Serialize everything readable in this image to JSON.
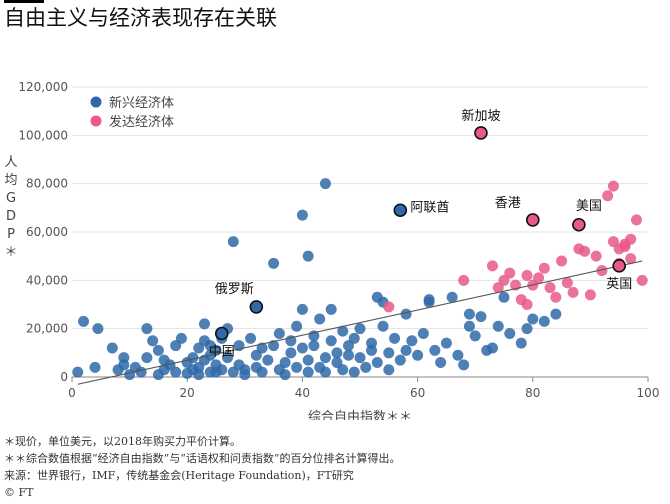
{
  "title": "自由主义与经济表现存在关联",
  "footnotes": [
    "＊现价，单位美元，以2018年购买力平价计算。",
    "＊＊综合数值根据“经济自由指数”与“话语权和问责指数”的百分位排名计算得出。",
    "来源：世界银行，IMF，传统基金会(Heritage Foundation)，FT研究"
  ],
  "credit": "© FT",
  "colors": {
    "emerging": "#2f6aa8",
    "developed": "#e7598c",
    "axis": "#888",
    "grid": "#e2e2e2"
  },
  "chart_data": {
    "type": "scatter",
    "xlabel": "综合自由指数＊＊",
    "ylabel": "人均GDP＊",
    "xlim": [
      0,
      100
    ],
    "ylim": [
      0,
      120000
    ],
    "x_ticks": [
      "0",
      "20",
      "40",
      "60",
      "80",
      "100"
    ],
    "y_ticks": [
      "0",
      "20,000",
      "40,000",
      "60,000",
      "80,000",
      "100,000",
      "120,000"
    ],
    "grid": "horizontal",
    "legend_position": "top-left",
    "series": [
      {
        "name": "新兴经济体",
        "points": [
          [
            1,
            2000
          ],
          [
            2,
            23000
          ],
          [
            4,
            4000
          ],
          [
            4.5,
            20000
          ],
          [
            7,
            12000
          ],
          [
            8,
            3000
          ],
          [
            9,
            5000
          ],
          [
            9,
            8000
          ],
          [
            10,
            1000
          ],
          [
            11,
            4000
          ],
          [
            12,
            2000
          ],
          [
            13,
            20000
          ],
          [
            13,
            8000
          ],
          [
            14,
            15000
          ],
          [
            15,
            1000
          ],
          [
            15,
            11000
          ],
          [
            16,
            3000
          ],
          [
            16,
            7000
          ],
          [
            17,
            5000
          ],
          [
            18,
            13000
          ],
          [
            18,
            2000
          ],
          [
            19,
            16000
          ],
          [
            20,
            6000
          ],
          [
            20,
            1500
          ],
          [
            21,
            8000
          ],
          [
            21,
            3000
          ],
          [
            22,
            12000
          ],
          [
            22,
            4000
          ],
          [
            22,
            1000
          ],
          [
            23,
            7000
          ],
          [
            23,
            15000
          ],
          [
            23,
            22000
          ],
          [
            24,
            2000
          ],
          [
            24,
            9000
          ],
          [
            24,
            13000
          ],
          [
            25,
            5000
          ],
          [
            25,
            2000
          ],
          [
            25,
            11000
          ],
          [
            26,
            3000
          ],
          [
            26,
            16000
          ],
          [
            27,
            20000
          ],
          [
            27,
            8000
          ],
          [
            28,
            56000
          ],
          [
            28,
            2000
          ],
          [
            29,
            13000
          ],
          [
            29,
            5000
          ],
          [
            30,
            3000
          ],
          [
            30,
            1000
          ],
          [
            31,
            16000
          ],
          [
            32,
            9000
          ],
          [
            32,
            4000
          ],
          [
            33,
            12000
          ],
          [
            33,
            2000
          ],
          [
            34,
            7000
          ],
          [
            35,
            47000
          ],
          [
            35,
            13000
          ],
          [
            36,
            3000
          ],
          [
            36,
            18000
          ],
          [
            37,
            6000
          ],
          [
            37,
            1000
          ],
          [
            38,
            15000
          ],
          [
            38,
            10000
          ],
          [
            39,
            4000
          ],
          [
            39,
            21000
          ],
          [
            40,
            67000
          ],
          [
            40,
            28000
          ],
          [
            40,
            12000
          ],
          [
            41,
            50000
          ],
          [
            41,
            7000
          ],
          [
            41,
            2000
          ],
          [
            42,
            17000
          ],
          [
            42,
            13000
          ],
          [
            43,
            24000
          ],
          [
            43,
            4000
          ],
          [
            44,
            80000
          ],
          [
            44,
            8000
          ],
          [
            44,
            2000
          ],
          [
            45,
            15000
          ],
          [
            45,
            28000
          ],
          [
            46,
            6000
          ],
          [
            46,
            10000
          ],
          [
            47,
            19000
          ],
          [
            47,
            3000
          ],
          [
            48,
            9000
          ],
          [
            48,
            13000
          ],
          [
            49,
            16000
          ],
          [
            49,
            2000
          ],
          [
            50,
            8000
          ],
          [
            50,
            20000
          ],
          [
            51,
            4000
          ],
          [
            52,
            11000
          ],
          [
            52,
            14000
          ],
          [
            53,
            33000
          ],
          [
            53,
            6000
          ],
          [
            54,
            21000
          ],
          [
            54,
            31000
          ],
          [
            55,
            10000
          ],
          [
            55,
            3000
          ],
          [
            56,
            16000
          ],
          [
            57,
            7000
          ],
          [
            58,
            11000
          ],
          [
            58,
            26000
          ],
          [
            59,
            15000
          ],
          [
            60,
            9000
          ],
          [
            61,
            18000
          ],
          [
            62,
            31000
          ],
          [
            62,
            32000
          ],
          [
            63,
            11000
          ],
          [
            64,
            6000
          ],
          [
            65,
            14000
          ],
          [
            66,
            33000
          ],
          [
            67,
            9000
          ],
          [
            68,
            5000
          ],
          [
            69,
            21000
          ],
          [
            69,
            26000
          ],
          [
            70,
            17000
          ],
          [
            71,
            25000
          ],
          [
            72,
            11000
          ],
          [
            73,
            12000
          ],
          [
            74,
            21000
          ],
          [
            75,
            33000
          ],
          [
            76,
            18000
          ],
          [
            78,
            14000
          ],
          [
            79,
            20000
          ],
          [
            80,
            24000
          ],
          [
            82,
            23000
          ],
          [
            84,
            26000
          ]
        ],
        "highlights": [
          {
            "label": "中国",
            "x": 26,
            "y": 18000
          },
          {
            "label": "俄罗斯",
            "x": 32,
            "y": 29000
          },
          {
            "label": "阿联酋",
            "x": 57,
            "y": 69000
          }
        ]
      },
      {
        "name": "发达经济体",
        "points": [
          [
            55,
            29000
          ],
          [
            68,
            40000
          ],
          [
            73,
            46000
          ],
          [
            74,
            37000
          ],
          [
            75,
            40000
          ],
          [
            76,
            43000
          ],
          [
            77,
            38000
          ],
          [
            78,
            32000
          ],
          [
            79,
            42000
          ],
          [
            79,
            30000
          ],
          [
            80,
            38000
          ],
          [
            81,
            41000
          ],
          [
            82,
            45000
          ],
          [
            83,
            37000
          ],
          [
            84,
            33000
          ],
          [
            85,
            48000
          ],
          [
            86,
            39000
          ],
          [
            87,
            35000
          ],
          [
            88,
            53000
          ],
          [
            89,
            52000
          ],
          [
            90,
            34000
          ],
          [
            91,
            50000
          ],
          [
            92,
            44000
          ],
          [
            93,
            75000
          ],
          [
            94,
            79000
          ],
          [
            94,
            56000
          ],
          [
            95,
            53000
          ],
          [
            95,
            47000
          ],
          [
            96,
            54000
          ],
          [
            96,
            55000
          ],
          [
            97,
            49000
          ],
          [
            97,
            57000
          ],
          [
            98,
            65000
          ],
          [
            99,
            40000
          ]
        ],
        "highlights": [
          {
            "label": "新加坡",
            "x": 71,
            "y": 101000
          },
          {
            "label": "香港",
            "x": 80,
            "y": 65000
          },
          {
            "label": "美国",
            "x": 88,
            "y": 63000
          },
          {
            "label": "英国",
            "x": 95,
            "y": 46000
          }
        ]
      }
    ],
    "trendline": {
      "x": [
        1,
        99
      ],
      "y": [
        -3000,
        48000
      ]
    }
  }
}
